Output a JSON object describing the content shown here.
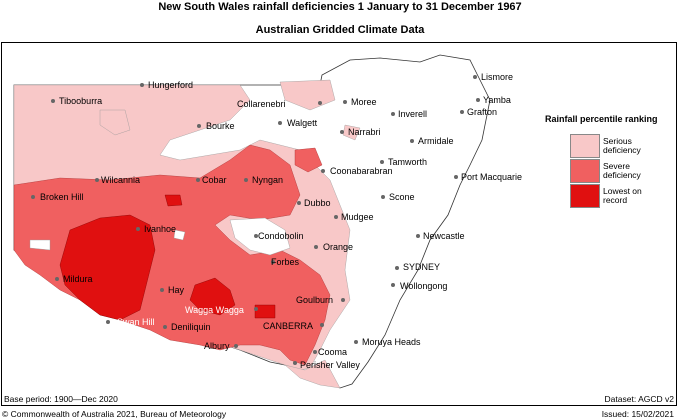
{
  "header": {
    "title": "New South Wales rainfall deficiencies   1 January to 31 December 1967",
    "subtitle": "Australian Gridded Climate Data"
  },
  "legend": {
    "title": "Rainfall percentile ranking",
    "items": [
      {
        "label": "Serious deficiency",
        "color": "#f8c8c8"
      },
      {
        "label": "Severe deficiency",
        "color": "#f06060"
      },
      {
        "label": "Lowest on record",
        "color": "#e01010"
      }
    ]
  },
  "places": [
    "Hungerford",
    "Tibooburra",
    "Collarenebri",
    "Moree",
    "Lismore",
    "Yamba",
    "Grafton",
    "Bourke",
    "Walgett",
    "Inverell",
    "Narrabri",
    "Armidale",
    "Tamworth",
    "Coonabarabran",
    "Port Macquarie",
    "Wilcannia",
    "Cobar",
    "Nyngan",
    "Broken Hill",
    "Dubbo",
    "Scone",
    "Mudgee",
    "Ivanhoe",
    "Condobolin",
    "Orange",
    "Newcastle",
    "Forbes",
    "SYDNEY",
    "Mildura",
    "Hay",
    "Wollongong",
    "Wagga Wagga",
    "Goulburn",
    "Swan Hill",
    "Deniliquin",
    "CANBERRA",
    "Albury",
    "Moruya Heads",
    "Cooma",
    "Perisher Valley"
  ],
  "footer": {
    "base_period": "Base period: 1900—Dec 2020",
    "dataset": "Dataset: AGCD v2",
    "copyright": "© Commonwealth of Australia 2021, Bureau of Meteorology",
    "issued": "Issued: 15/02/2021"
  },
  "colors": {
    "serious": "#f8c8c8",
    "severe": "#f06060",
    "record": "#e01010"
  }
}
